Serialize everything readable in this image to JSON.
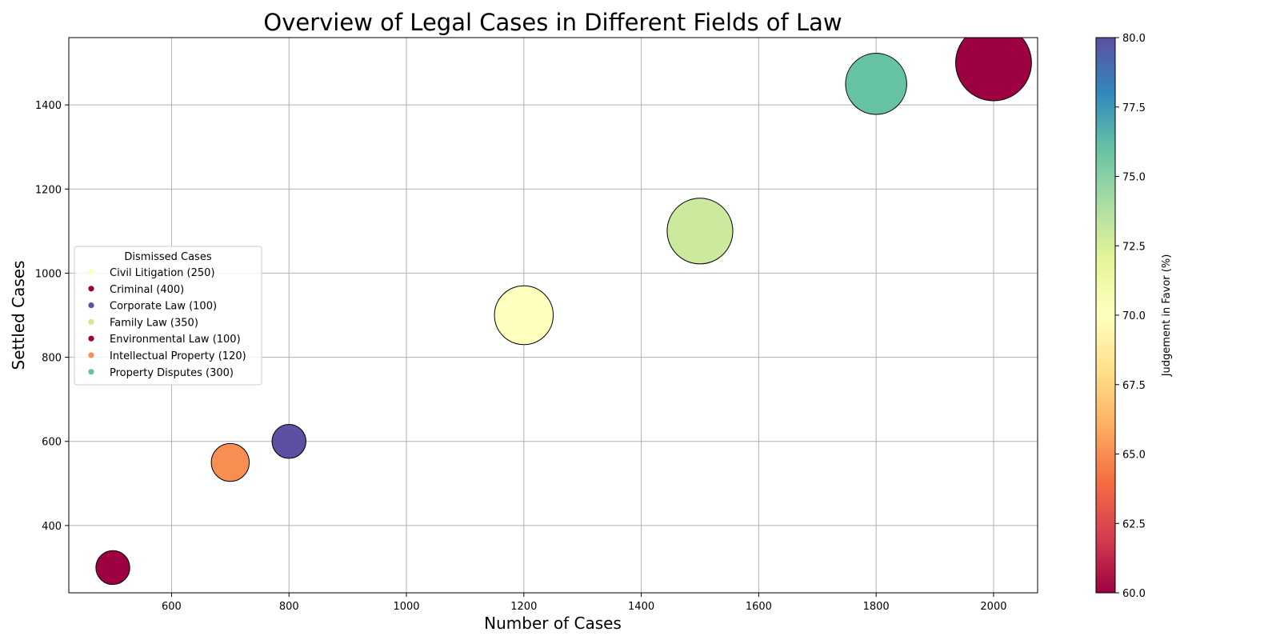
{
  "chart_data": {
    "type": "scatter",
    "title": "Overview of Legal Cases in Different Fields of Law",
    "xlabel": "Number of Cases",
    "ylabel": "Settled Cases",
    "xlim": [
      425,
      2075
    ],
    "ylim": [
      240,
      1560
    ],
    "x_ticks": [
      600,
      800,
      1000,
      1200,
      1400,
      1600,
      1800,
      2000
    ],
    "y_ticks": [
      400,
      600,
      800,
      1000,
      1200,
      1400
    ],
    "grid": true,
    "legend": {
      "title": "Dismissed Cases",
      "placement": "center-left"
    },
    "colorbar": {
      "label": "Judgement in Favor (%)",
      "range": [
        60,
        80
      ],
      "ticks": [
        60.0,
        62.5,
        65.0,
        67.5,
        70.0,
        72.5,
        75.0,
        77.5,
        80.0
      ],
      "tick_labels": [
        "60.0",
        "62.5",
        "65.0",
        "67.5",
        "70.0",
        "72.5",
        "75.0",
        "77.5",
        "80.0"
      ],
      "colormap": "Spectral",
      "stops": [
        "#9e0142",
        "#d53e4f",
        "#f46d43",
        "#fdae61",
        "#fee08b",
        "#ffffbf",
        "#e6f598",
        "#abdda4",
        "#66c2a5",
        "#3288bd",
        "#5e4fa2"
      ]
    },
    "points": [
      {
        "label": "Civil Litigation (250)",
        "x": 1200,
        "y": 900,
        "size": 1200,
        "color": "#ffffbe"
      },
      {
        "label": "Criminal (400)",
        "x": 2000,
        "y": 1500,
        "size": 2000,
        "color": "#9e0142"
      },
      {
        "label": "Corporate Law (100)",
        "x": 800,
        "y": 600,
        "size": 400,
        "color": "#5e4fa2"
      },
      {
        "label": "Family Law (350)",
        "x": 1500,
        "y": 1100,
        "size": 1500,
        "color": "#cbea9d"
      },
      {
        "label": "Environmental Law (100)",
        "x": 500,
        "y": 300,
        "size": 400,
        "color": "#9e0142"
      },
      {
        "label": "Intellectual Property (120)",
        "x": 700,
        "y": 550,
        "size": 500,
        "color": "#f98e52"
      },
      {
        "label": "Property Disputes (300)",
        "x": 1800,
        "y": 1450,
        "size": 1300,
        "color": "#66c2a5"
      }
    ]
  }
}
